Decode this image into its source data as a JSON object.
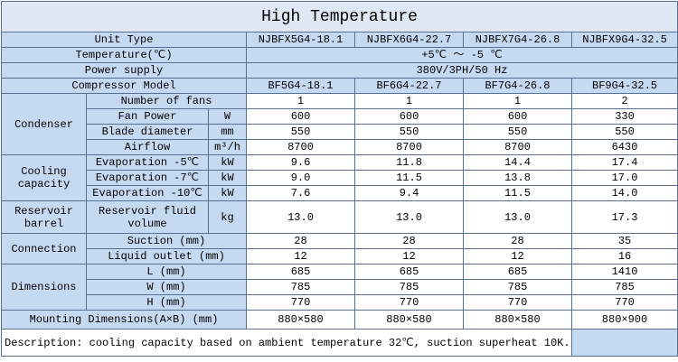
{
  "title": "High Temperature",
  "unit_type": {
    "label": "Unit Type",
    "values": [
      "NJBFX5G4-18.1",
      "NJBFX6G4-22.7",
      "NJBFX7G4-26.8",
      "NJBFX9G4-32.5"
    ]
  },
  "temperature": {
    "label": "Temperature(℃)",
    "value": "+5℃ ～ -5 ℃"
  },
  "power_supply": {
    "label": "Power supply",
    "value": "380V/3PH/50 Hz"
  },
  "compressor_model": {
    "label": "Compressor Model",
    "values": [
      "BF5G4-18.1",
      "BF6G4-22.7",
      "BF7G4-26.8",
      "BF9G4-32.5"
    ]
  },
  "groups": [
    {
      "label": "Condenser",
      "rows": [
        {
          "label": "Number of fans",
          "values": [
            "1",
            "1",
            "1",
            "2"
          ]
        },
        {
          "label": "Fan Power",
          "unit": "W",
          "values": [
            "600",
            "600",
            "600",
            "330"
          ]
        },
        {
          "label": "Blade diameter",
          "unit": "mm",
          "values": [
            "550",
            "550",
            "550",
            "550"
          ]
        },
        {
          "label": "Airflow",
          "unit": "m³/h",
          "values": [
            "8700",
            "8700",
            "8700",
            "6430"
          ]
        }
      ]
    },
    {
      "label": "Cooling capacity",
      "rows": [
        {
          "label": "Evaporation -5℃",
          "unit": "kW",
          "values": [
            "9.6",
            "11.8",
            "14.4",
            "17.4"
          ]
        },
        {
          "label": "Evaporation -7℃",
          "unit": "kW",
          "values": [
            "9.0",
            "11.5",
            "13.8",
            "17.0"
          ]
        },
        {
          "label": "Evaporation -10℃",
          "unit": "kW",
          "values": [
            "7.6",
            "9.4",
            "11.5",
            "14.0"
          ]
        }
      ]
    },
    {
      "label": "Reservoir barrel",
      "rows": [
        {
          "label": "Reservoir fluid volume",
          "unit": "kg",
          "values": [
            "13.0",
            "13.0",
            "13.0",
            "17.3"
          ]
        }
      ]
    },
    {
      "label": "Connection",
      "rows": [
        {
          "label": "Suction (mm)",
          "values": [
            "28",
            "28",
            "28",
            "35"
          ]
        },
        {
          "label": "Liquid outlet (mm)",
          "values": [
            "12",
            "12",
            "12",
            "16"
          ]
        }
      ]
    },
    {
      "label": "Dimensions",
      "rows": [
        {
          "label": "L (mm)",
          "values": [
            "685",
            "685",
            "685",
            "1410"
          ]
        },
        {
          "label": "W (mm)",
          "values": [
            "785",
            "785",
            "785",
            "785"
          ]
        },
        {
          "label": "H (mm)",
          "values": [
            "770",
            "770",
            "770",
            "770"
          ]
        }
      ]
    }
  ],
  "mounting": {
    "label": "Mounting Dimensions(A×B) (mm)",
    "values": [
      "880×580",
      "880×580",
      "880×580",
      "880×900"
    ]
  },
  "description": "Description: cooling capacity based on ambient temperature 32℃, suction superheat 10K."
}
